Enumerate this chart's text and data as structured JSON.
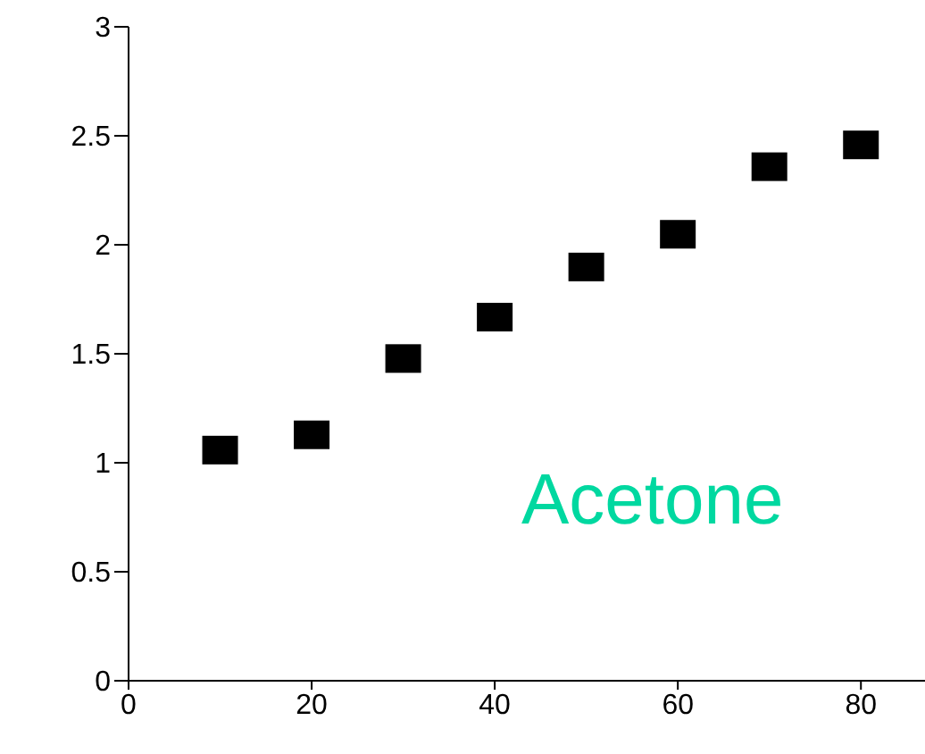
{
  "chart_data": {
    "type": "scatter",
    "x": [
      10,
      20,
      30,
      40,
      50,
      60,
      70,
      80
    ],
    "values": [
      1.05,
      1.12,
      1.47,
      1.66,
      1.89,
      2.04,
      2.35,
      2.45
    ],
    "color": "#000000",
    "marker": "square",
    "xlim": [
      0,
      87
    ],
    "xticks": [
      0,
      20,
      40,
      60,
      80
    ],
    "ylim": [
      0,
      3
    ],
    "yticks": [
      0,
      0.5,
      1,
      1.5,
      2,
      2.5,
      3
    ],
    "grid": false,
    "annotations": [
      "Acetone"
    ]
  }
}
